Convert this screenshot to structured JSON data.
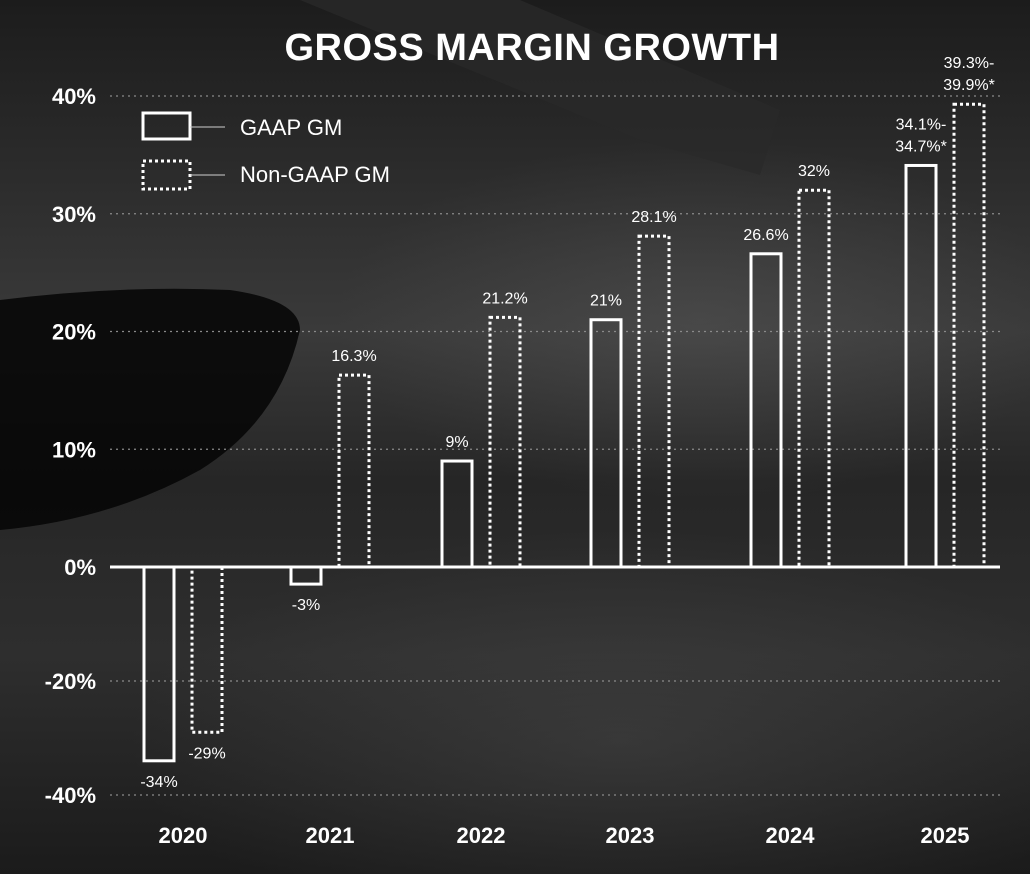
{
  "chart_data": {
    "type": "bar",
    "title": "GROSS MARGIN GROWTH",
    "xlabel": "",
    "ylabel": "",
    "categories": [
      "2020",
      "2021",
      "2022",
      "2023",
      "2024",
      "2025"
    ],
    "ylim": [
      -40,
      40
    ],
    "y_ticks": [
      40,
      30,
      20,
      10,
      0,
      -20,
      -40
    ],
    "y_tick_labels": [
      "40%",
      "30%",
      "20%",
      "10%",
      "0%",
      "-20%",
      "-40%"
    ],
    "grid": "horizontal dotted",
    "legend_position": "top-left",
    "series": [
      {
        "name": "GAAP GM",
        "style": "solid-outline",
        "values": [
          -34,
          -3,
          9,
          21,
          26.6,
          34.1
        ],
        "data_labels": [
          "-34%",
          "-3%",
          "9%",
          "21%",
          "26.6%",
          [
            "34.1%-",
            "34.7%*"
          ]
        ]
      },
      {
        "name": "Non-GAAP GM",
        "style": "dotted-outline",
        "values": [
          -29,
          16.3,
          21.2,
          28.1,
          32,
          39.3
        ],
        "data_labels": [
          "-29%",
          "16.3%",
          "21.2%",
          "28.1%",
          "32%",
          [
            "39.3%-",
            "39.9%*"
          ]
        ]
      }
    ]
  },
  "colors": {
    "background": "#1e1e1e",
    "foreground": "#ffffff",
    "grid": "#8a8a8a"
  }
}
